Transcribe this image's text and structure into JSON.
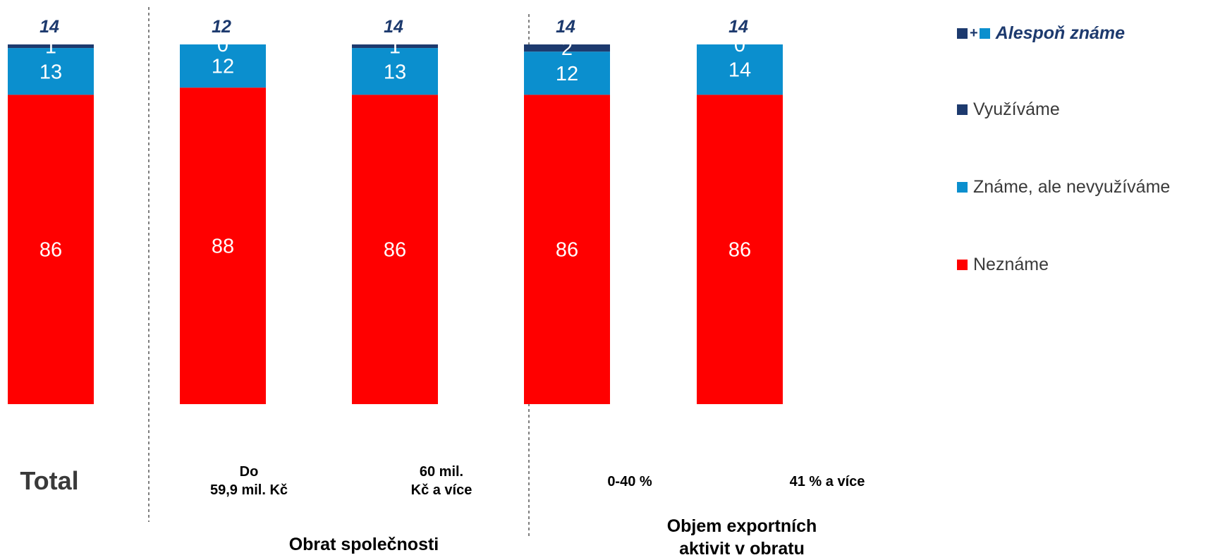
{
  "chart_data": {
    "type": "bar",
    "stacked": true,
    "categories": [
      "Total",
      "Do\n59,9 mil. Kč",
      "60 mil.\nKč a více",
      "0-40 %",
      "41 % a více"
    ],
    "groups": [
      {
        "label": "",
        "categories": [
          0
        ]
      },
      {
        "label": "Obrat společnosti",
        "categories": [
          1,
          2
        ]
      },
      {
        "label": "Objem exportních\naktivit v obratu",
        "categories": [
          3,
          4
        ]
      }
    ],
    "series": [
      {
        "name": "Neznáme",
        "color": "#ff0000",
        "values": [
          86,
          88,
          86,
          86,
          86
        ]
      },
      {
        "name": "Známe, ale nevyužíváme",
        "color": "#0b8fce",
        "values": [
          13,
          12,
          13,
          12,
          14
        ]
      },
      {
        "name": "Využíváme",
        "color": "#1d3a6e",
        "values": [
          1,
          0,
          1,
          2,
          0
        ]
      }
    ],
    "totals": {
      "name": "Alespoň známe",
      "values": [
        14,
        12,
        14,
        14,
        14
      ]
    },
    "ylim": [
      0,
      100
    ],
    "legend_position": "right",
    "grid": false
  },
  "legend": {
    "special_label": "Alespoň známe",
    "items": [
      {
        "label": "Využíváme",
        "color": "#1d3a6e"
      },
      {
        "label": "Známe, ale nevyužíváme",
        "color": "#0b8fce"
      },
      {
        "label": "Neznáme",
        "color": "#ff0000"
      }
    ]
  }
}
